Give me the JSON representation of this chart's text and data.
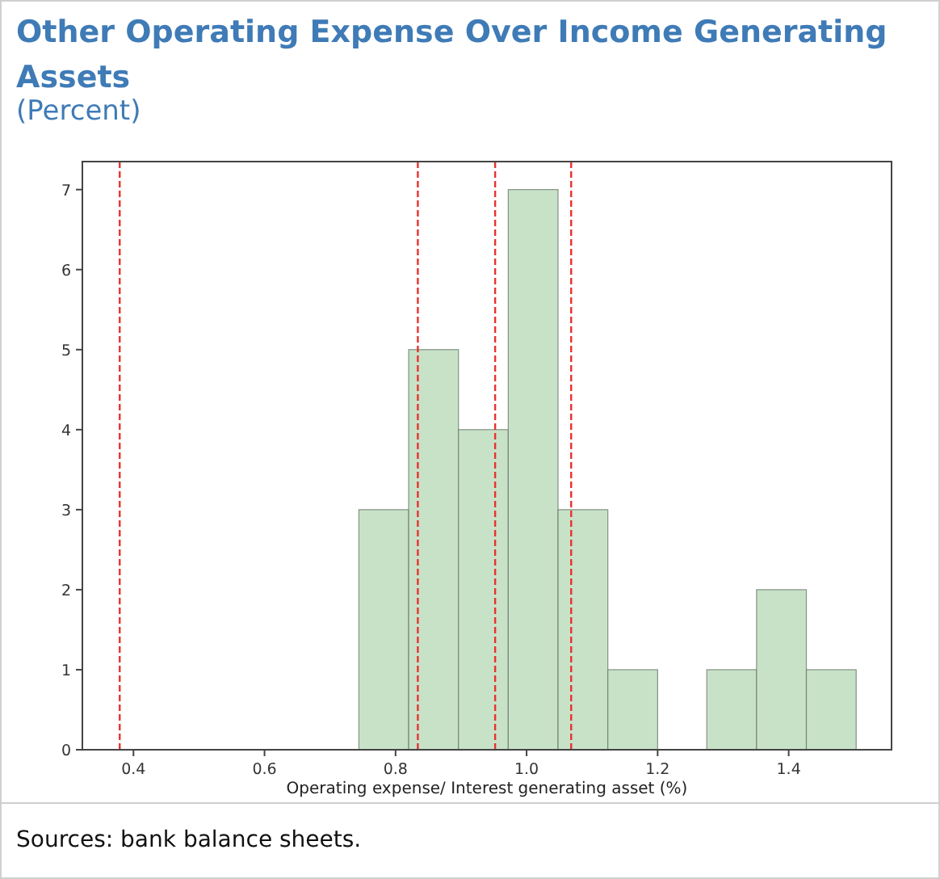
{
  "chart_data": {
    "type": "histogram",
    "title": "Other Operating Expense Over Income Generating Assets",
    "subtitle": "(Percent)",
    "xlabel": "Operating expense/ Interest generating asset (%)",
    "bins": [
      0.744,
      0.82,
      0.896,
      0.972,
      1.048,
      1.124,
      1.2,
      1.275,
      1.351,
      1.427,
      1.503
    ],
    "values": [
      3,
      5,
      4,
      7,
      3,
      1,
      0,
      1,
      2,
      1
    ],
    "color": "#c8e2c8",
    "xlim": [
      0.322,
      1.557
    ],
    "xticks": [
      0.4,
      0.6,
      0.8,
      {
        "value": 1,
        "label": "1.0"
      },
      1.2,
      1.4
    ],
    "ylim": [
      0,
      7.35
    ],
    "yticks": [
      0,
      1,
      2,
      3,
      4,
      5,
      6,
      7
    ],
    "ref_lines": [
      {
        "axis": "x",
        "value": 0.379,
        "color": "#e8322e",
        "line_style": "dashed"
      },
      {
        "axis": "x",
        "value": 0.834,
        "color": "#e8322e",
        "line_style": "dashed"
      },
      {
        "axis": "x",
        "value": 0.952,
        "color": "#e8322e",
        "line_style": "dashed"
      },
      {
        "axis": "x",
        "value": 1.068,
        "color": "#e8322e",
        "line_style": "dashed"
      }
    ],
    "annotations": [
      "Sources: bank balance sheets."
    ]
  }
}
